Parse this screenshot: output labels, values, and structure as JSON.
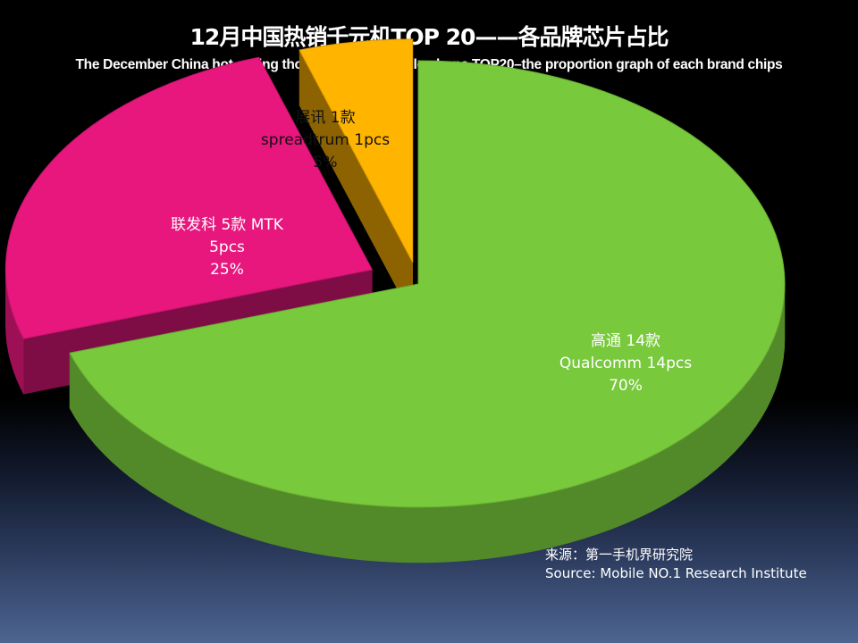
{
  "colors": {
    "qualcomm": "#78c93c",
    "mtk": "#e7177e",
    "spreadtrum": "#ffb400"
  },
  "source": {
    "line1": "来源：第一手机界研究院",
    "line2": "Source: Mobile NO.1 Research Institute"
  },
  "chart_data": {
    "type": "pie",
    "title": "12月中国热销千元机TOP 20——各品牌芯片占比",
    "subtitle": "The December China hot selling thousand-yuan mobile phone TOP20–the proportion graph of each brand chips",
    "slices": [
      {
        "name": "Qualcomm",
        "label_cn": "高通 14款",
        "label_en": "Qualcomm 14pcs",
        "count": 14,
        "percent": "70%",
        "value": 70,
        "color": "#78c93c"
      },
      {
        "name": "MTK",
        "label_cn": "联发科 5款 MTK",
        "label_en": "5pcs",
        "count": 5,
        "percent": "25%",
        "value": 25,
        "color": "#e7177e"
      },
      {
        "name": "spreadtrum",
        "label_cn": "展讯 1款",
        "label_en": "spreadtrum 1pcs",
        "count": 1,
        "percent": "5%",
        "value": 5,
        "color": "#ffb400"
      }
    ]
  }
}
